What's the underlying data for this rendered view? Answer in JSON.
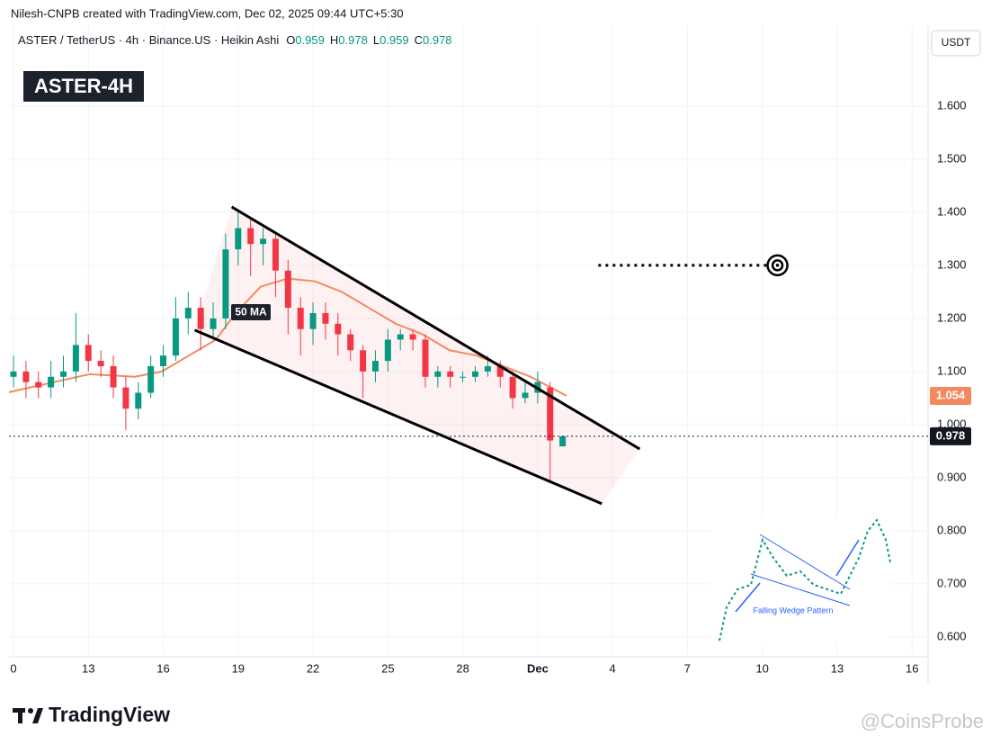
{
  "header": "Nilesh-CNPB created with TradingView.com, Dec 02, 2025 09:44 UTC+5:30",
  "symbol_line": "ASTER / TetherUS · 4h · Binance.US · Heikin Ashi",
  "ohlc_legend": [
    {
      "label": "O",
      "value": 0.959
    },
    {
      "label": "H",
      "value": 0.978
    },
    {
      "label": "L",
      "value": 0.959
    },
    {
      "label": "C",
      "value": 0.978
    }
  ],
  "badge": "ASTER-4H",
  "currency": "USDT",
  "logo": "TradingView",
  "watermark": "@CoinsProbe",
  "inset_caption": "Falling Wedge Pattern",
  "chart_data": {
    "type": "candlestick",
    "x": [
      0,
      0.5,
      1,
      1.5,
      2,
      2.5,
      3,
      3.5,
      4,
      4.5,
      5,
      5.5,
      6,
      6.5,
      7,
      7.5,
      8,
      8.5,
      9,
      9.5,
      10,
      10.5,
      11,
      11.5,
      12,
      12.5,
      13,
      13.5,
      14,
      14.5,
      15,
      15.5,
      16,
      16.5,
      17,
      17.5,
      18,
      18.5,
      19,
      19.5,
      20,
      20.5,
      21,
      21.5,
      22
    ],
    "open": [
      1.09,
      1.1,
      1.08,
      1.07,
      1.09,
      1.1,
      1.15,
      1.12,
      1.11,
      1.07,
      1.03,
      1.06,
      1.11,
      1.13,
      1.2,
      1.22,
      1.18,
      1.2,
      1.33,
      1.37,
      1.34,
      1.35,
      1.29,
      1.22,
      1.18,
      1.21,
      1.19,
      1.17,
      1.14,
      1.1,
      1.12,
      1.16,
      1.17,
      1.16,
      1.09,
      1.1,
      1.09,
      1.09,
      1.1,
      1.11,
      1.09,
      1.05,
      1.06,
      1.07,
      0.959
    ],
    "high": [
      1.13,
      1.12,
      1.1,
      1.12,
      1.13,
      1.21,
      1.17,
      1.14,
      1.13,
      1.09,
      1.08,
      1.13,
      1.15,
      1.24,
      1.25,
      1.24,
      1.23,
      1.36,
      1.4,
      1.39,
      1.37,
      1.36,
      1.31,
      1.24,
      1.23,
      1.23,
      1.21,
      1.18,
      1.15,
      1.14,
      1.18,
      1.18,
      1.18,
      1.17,
      1.11,
      1.11,
      1.1,
      1.11,
      1.13,
      1.12,
      1.1,
      1.08,
      1.1,
      1.08,
      0.978
    ],
    "low": [
      1.07,
      1.05,
      1.05,
      1.05,
      1.07,
      1.08,
      1.1,
      1.09,
      1.05,
      0.99,
      1.01,
      1.05,
      1.09,
      1.12,
      1.17,
      1.14,
      1.16,
      1.18,
      1.3,
      1.28,
      1.3,
      1.24,
      1.17,
      1.13,
      1.15,
      1.16,
      1.13,
      1.12,
      1.05,
      1.08,
      1.1,
      1.14,
      1.14,
      1.07,
      1.07,
      1.07,
      1.08,
      1.08,
      1.09,
      1.07,
      1.03,
      1.04,
      1.04,
      0.89,
      0.959
    ],
    "close": [
      1.1,
      1.08,
      1.07,
      1.09,
      1.1,
      1.15,
      1.12,
      1.11,
      1.07,
      1.03,
      1.06,
      1.11,
      1.13,
      1.2,
      1.22,
      1.18,
      1.2,
      1.33,
      1.37,
      1.34,
      1.35,
      1.29,
      1.22,
      1.18,
      1.21,
      1.19,
      1.17,
      1.14,
      1.1,
      1.12,
      1.16,
      1.17,
      1.16,
      1.09,
      1.1,
      1.09,
      1.09,
      1.1,
      1.11,
      1.09,
      1.05,
      1.06,
      1.08,
      0.97,
      0.978
    ],
    "up_color": "#089981",
    "down_color": "#f23645",
    "xlim": [
      -0.18,
      36.64
    ],
    "xticks": [
      0,
      {
        "value": 3,
        "label": "13"
      },
      {
        "value": 6,
        "label": "16"
      },
      {
        "value": 9,
        "label": "19"
      },
      {
        "value": 12,
        "label": "22"
      },
      {
        "value": 15,
        "label": "25"
      },
      {
        "value": 18,
        "label": "28"
      },
      {
        "value": 21,
        "label": "Dec"
      },
      {
        "value": 24,
        "label": "4"
      },
      {
        "value": 27,
        "label": "7"
      },
      {
        "value": 30,
        "label": "10"
      },
      {
        "value": 33,
        "label": "13"
      },
      {
        "value": 36,
        "label": "16"
      }
    ],
    "ylim": [
      0.566,
      1.698
    ],
    "yticks": [
      {
        "value": 0.6,
        "label": "0.600"
      },
      {
        "value": 0.7,
        "label": "0.700"
      },
      {
        "value": 0.8,
        "label": "0.800"
      },
      {
        "value": 0.9,
        "label": "0.900"
      },
      {
        "value": 1.0,
        "label": "1.000"
      },
      {
        "value": 1.1,
        "label": "1.100"
      },
      {
        "value": 1.2,
        "label": "1.200"
      },
      {
        "value": 1.3,
        "label": "1.300"
      },
      {
        "value": 1.4,
        "label": "1.400"
      },
      {
        "value": 1.5,
        "label": "1.500"
      },
      {
        "value": 1.6,
        "label": "1.600"
      }
    ],
    "grid": true,
    "moving_average": {
      "name": "50 MA",
      "color": "#f4895f",
      "x": [
        -0.18,
        1.62,
        3.06,
        4.86,
        5.94,
        7.03,
        8.11,
        8.9,
        9.91,
        10.99,
        12.07,
        13.15,
        14.23,
        15.31,
        16.39,
        17.47,
        18.55,
        19.63,
        20.72,
        22.16
      ],
      "values": [
        1.061,
        1.08,
        1.095,
        1.09,
        1.1,
        1.13,
        1.16,
        1.21,
        1.26,
        1.275,
        1.27,
        1.25,
        1.22,
        1.19,
        1.17,
        1.14,
        1.13,
        1.11,
        1.09,
        1.054
      ]
    },
    "last_price": 0.978,
    "wedge_upper": {
      "x": [
        8.74,
        25.09
      ],
      "values": [
        1.41,
        0.954
      ]
    },
    "wedge_lower": {
      "x": [
        7.26,
        23.57
      ],
      "values": [
        1.178,
        0.851
      ]
    },
    "target": {
      "x": [
        23.43,
        30.32
      ],
      "value": 1.3
    }
  }
}
